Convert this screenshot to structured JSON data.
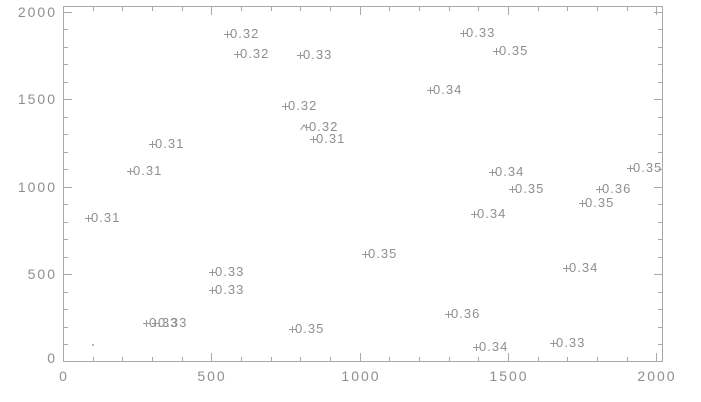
{
  "figure": {
    "background": "#ffffff",
    "axis_color": "#a9a9a9",
    "text_color": "#8f8f8f",
    "marker_color": "#979797"
  },
  "chart_data": {
    "type": "scatter",
    "title": "",
    "subtitle": "",
    "xlabel": "",
    "ylabel": "",
    "xlim": [
      0,
      2023
    ],
    "ylim": [
      0,
      2034
    ],
    "x_tick_labels": [
      "0",
      "500",
      "1000",
      "1500",
      "2000"
    ],
    "x_tick_values": [
      0,
      500,
      1000,
      1500,
      2000
    ],
    "y_tick_labels": [
      "0",
      "500",
      "1000",
      "1500",
      "2000"
    ],
    "y_tick_values": [
      0,
      500,
      1000,
      1500,
      2000
    ],
    "minor_tick_step": 100,
    "grid": false,
    "legend": false,
    "marker_default": "plus",
    "points": [
      {
        "x": 553,
        "y": 1874,
        "label": "0.32"
      },
      {
        "x": 587,
        "y": 1760,
        "label": "0.32"
      },
      {
        "x": 799,
        "y": 1754,
        "label": "0.33"
      },
      {
        "x": 749,
        "y": 1463,
        "label": "0.32"
      },
      {
        "x": 819,
        "y": 1343,
        "label": "0.32",
        "marker": "triangle-plus"
      },
      {
        "x": 843,
        "y": 1274,
        "label": "0.31"
      },
      {
        "x": 300,
        "y": 1246,
        "label": "0.31"
      },
      {
        "x": 226,
        "y": 1091,
        "label": "0.31"
      },
      {
        "x": 1349,
        "y": 1880,
        "label": "0.33"
      },
      {
        "x": 1460,
        "y": 1777,
        "label": "0.35"
      },
      {
        "x": 1238,
        "y": 1554,
        "label": "0.34"
      },
      {
        "x": 1447,
        "y": 1086,
        "label": "0.34"
      },
      {
        "x": 1912,
        "y": 1109,
        "label": "0.35"
      },
      {
        "x": 1514,
        "y": 989,
        "label": "0.35"
      },
      {
        "x": 1807,
        "y": 989,
        "label": "0.36"
      },
      {
        "x": 1750,
        "y": 909,
        "label": "0.35"
      },
      {
        "x": 84,
        "y": 823,
        "label": "0.31"
      },
      {
        "x": 502,
        "y": 514,
        "label": "0.33"
      },
      {
        "x": 502,
        "y": 411,
        "label": "0.33"
      },
      {
        "x": 280,
        "y": 223,
        "label": "0.33"
      },
      {
        "x": 310,
        "y": 223,
        "label": "0.33"
      },
      {
        "x": 772,
        "y": 189,
        "label": "0.35"
      },
      {
        "x": 1386,
        "y": 846,
        "label": "0.34"
      },
      {
        "x": 1018,
        "y": 617,
        "label": "0.35"
      },
      {
        "x": 1696,
        "y": 537,
        "label": "0.34"
      },
      {
        "x": 1298,
        "y": 274,
        "label": "0.36"
      },
      {
        "x": 1393,
        "y": 86,
        "label": "0.34"
      },
      {
        "x": 1652,
        "y": 109,
        "label": "0.33"
      },
      {
        "x": 101,
        "y": 97,
        "label": "",
        "marker": "dot"
      }
    ]
  }
}
